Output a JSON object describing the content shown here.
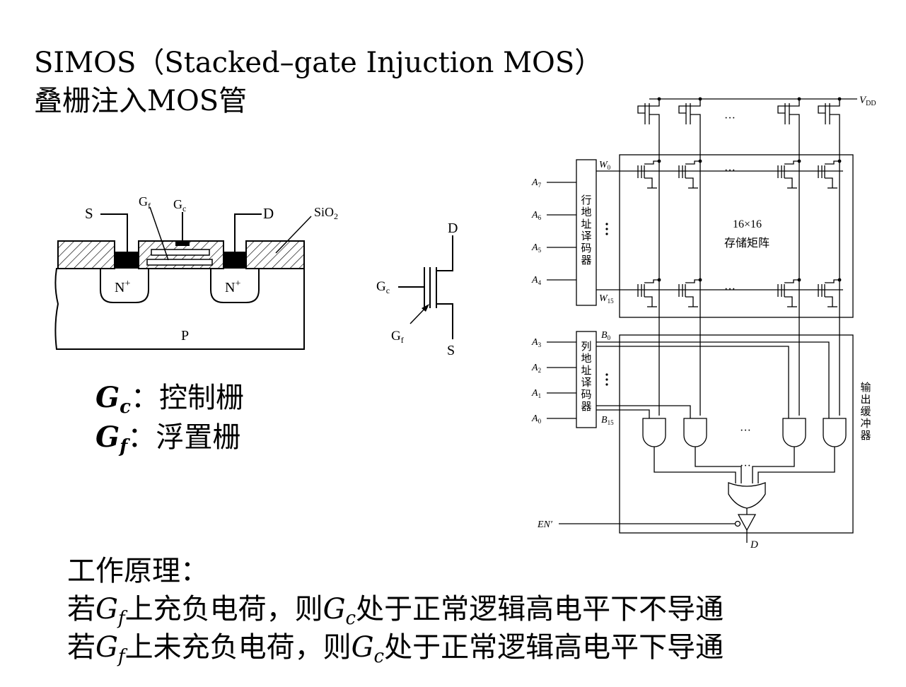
{
  "title": {
    "line1": "SIMOS（Stacked–gate Injuction MOS）",
    "line2": "叠栅注入MOS管"
  },
  "cross_section": {
    "S": "S",
    "D": "D",
    "Gf": "G",
    "Gf_sub": "f",
    "Gc": "G",
    "Gc_sub": "c",
    "SiO2": "SiO",
    "SiO2_sub": "2",
    "N_left": "N",
    "N_right": "N",
    "plus": "+",
    "P": "P"
  },
  "symbol": {
    "D": "D",
    "S": "S",
    "Gc": "G",
    "Gc_sub": "c",
    "Gf": "G",
    "Gf_sub": "f"
  },
  "legend": {
    "gc_sym": "G",
    "gc_sub": "c",
    "gc_sep": "：",
    "gc_text": "控制栅",
    "gf_sym": "G",
    "gf_sub": "f",
    "gf_sep": "：",
    "gf_text": "浮置栅"
  },
  "principle": {
    "heading": "工作原理：",
    "l1_a": "若",
    "l1_g1": "G",
    "l1_s1": "f",
    "l1_b": "上充负电荷，则",
    "l1_g2": "G",
    "l1_s2": "c",
    "l1_c": "处于正常逻辑高电平下不导通",
    "l2_a": "若",
    "l2_g1": "G",
    "l2_s1": "f",
    "l2_b": "上未充负电荷，则",
    "l2_g2": "G",
    "l2_s2": "c",
    "l2_c": "处于正常逻辑高电平下导通"
  },
  "circuit": {
    "vdd": "V",
    "vdd_sub": "DD",
    "row_decoder": [
      "行",
      "地",
      "址",
      "译",
      "码",
      "器"
    ],
    "col_decoder": [
      "列",
      "地",
      "址",
      "译",
      "码",
      "器"
    ],
    "output_buffer": [
      "输",
      "出",
      "缓",
      "冲",
      "器"
    ],
    "matrix_l1": "16×16",
    "matrix_l2": "存储矩阵",
    "row_inputs": [
      {
        "n": "A",
        "s": "7"
      },
      {
        "n": "A",
        "s": "6"
      },
      {
        "n": "A",
        "s": "5"
      },
      {
        "n": "A",
        "s": "4"
      }
    ],
    "col_inputs": [
      {
        "n": "A",
        "s": "3"
      },
      {
        "n": "A",
        "s": "2"
      },
      {
        "n": "A",
        "s": "1"
      },
      {
        "n": "A",
        "s": "0"
      }
    ],
    "w0": "W",
    "w0_sub": "0",
    "w15": "W",
    "w15_sub": "15",
    "b0": "B",
    "b0_sub": "0",
    "b15": "B",
    "b15_sub": "15",
    "en": "EN′",
    "out": "D",
    "dots": "···"
  }
}
